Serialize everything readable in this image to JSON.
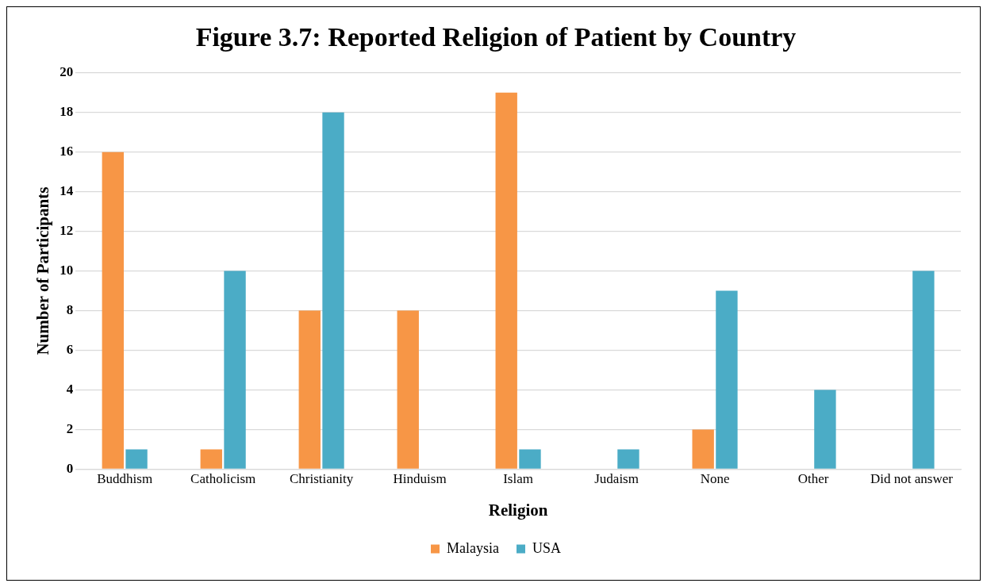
{
  "chart_data": {
    "type": "bar",
    "title": "Figure 3.7: Reported Religion of Patient by Country",
    "xlabel": "Religion",
    "ylabel": "Number of Participants",
    "categories": [
      "Buddhism",
      "Catholicism",
      "Christianity",
      "Hinduism",
      "Islam",
      "Judaism",
      "None",
      "Other",
      "Did not answer"
    ],
    "series": [
      {
        "name": "Malaysia",
        "color": "#f79646",
        "values": [
          16,
          1,
          8,
          8,
          19,
          0,
          2,
          0,
          0
        ]
      },
      {
        "name": "USA",
        "color": "#4bacc6",
        "values": [
          1,
          10,
          18,
          0,
          1,
          1,
          9,
          4,
          10
        ]
      }
    ],
    "ylim": [
      0,
      20
    ],
    "yticks": [
      0,
      2,
      4,
      6,
      8,
      10,
      12,
      14,
      16,
      18,
      20
    ],
    "grid": "y",
    "legend": "bottom"
  }
}
